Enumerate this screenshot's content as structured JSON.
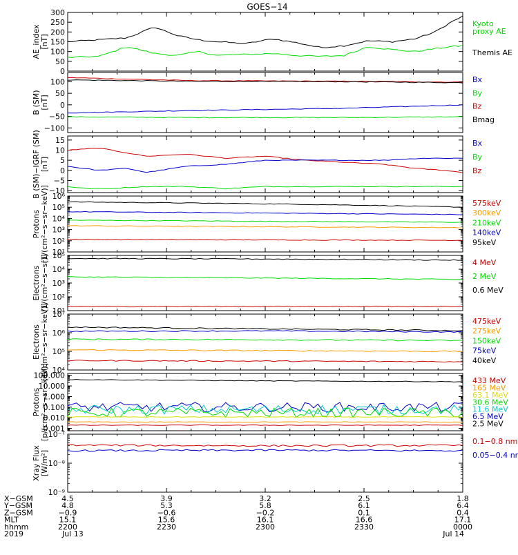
{
  "title": "GOES−14",
  "chart_data": [
    {
      "type": "line",
      "ylabel": [
        "AE_index",
        "[nT]"
      ],
      "yscale": "linear",
      "ylim": [
        0,
        300
      ],
      "yticks": [
        0,
        50,
        100,
        150,
        200,
        250,
        300
      ],
      "ytick_labels": [
        "0",
        "50",
        "100",
        "150",
        "200",
        "250",
        "300"
      ],
      "series": [
        {
          "name": "Themis AE",
          "color": "#000000",
          "kind": "ae",
          "x": [
            0,
            0.08,
            0.15,
            0.22,
            0.28,
            0.33,
            0.38,
            0.45,
            0.52,
            0.58,
            0.64,
            0.7,
            0.76,
            0.82,
            0.88,
            0.93,
            0.97,
            1.0
          ],
          "y": [
            150,
            160,
            170,
            225,
            180,
            160,
            150,
            140,
            165,
            145,
            120,
            130,
            155,
            150,
            165,
            200,
            250,
            280
          ]
        },
        {
          "name": "Kyoto proxy AE",
          "color": "#00dd00",
          "kind": "kyoto",
          "x": [
            0,
            0.08,
            0.15,
            0.22,
            0.28,
            0.33,
            0.38,
            0.45,
            0.52,
            0.58,
            0.64,
            0.7,
            0.76,
            0.82,
            0.88,
            0.93,
            0.97,
            1.0
          ],
          "y": [
            70,
            75,
            125,
            90,
            80,
            100,
            80,
            85,
            90,
            80,
            75,
            80,
            125,
            110,
            100,
            115,
            125,
            130
          ]
        }
      ],
      "legend_lines": [
        {
          "text": "Kyoto",
          "color": "#00dd00"
        },
        {
          "text": "proxy AE",
          "color": "#00dd00"
        },
        {
          "text": "Themis AE",
          "color": "#000000"
        }
      ]
    },
    {
      "type": "line",
      "ylabel": [
        "B (SM)",
        "[nT]"
      ],
      "yscale": "linear",
      "ylim": [
        -120,
        140
      ],
      "yticks": [
        -100,
        -50,
        0,
        50,
        100
      ],
      "ytick_labels": [
        "−100",
        "−50",
        "0",
        "50",
        "100"
      ],
      "series": [
        {
          "name": "Bz",
          "color": "#cc0000",
          "x": [
            0,
            0.3,
            0.7,
            1.0
          ],
          "y": [
            118,
            105,
            102,
            98
          ]
        },
        {
          "name": "Bmag",
          "color": "#000000",
          "x": [
            0,
            0.3,
            0.7,
            1.0
          ],
          "y": [
            108,
            102,
            100,
            96
          ]
        },
        {
          "name": "Bx",
          "color": "#0000cc",
          "x": [
            0,
            0.3,
            0.7,
            1.0
          ],
          "y": [
            -35,
            -25,
            -15,
            0
          ]
        },
        {
          "name": "By",
          "color": "#00dd00",
          "x": [
            0,
            0.3,
            0.7,
            1.0
          ],
          "y": [
            -52,
            -55,
            -55,
            -52
          ]
        }
      ],
      "legend_lines": [
        {
          "text": "Bx",
          "color": "#0000cc"
        },
        {
          "text": "By",
          "color": "#00dd00"
        },
        {
          "text": "Bz",
          "color": "#cc0000"
        },
        {
          "text": "Bmag",
          "color": "#000000"
        }
      ]
    },
    {
      "type": "line",
      "ylabel": [
        "B (SM)−IGRF (SM)",
        "[nT]"
      ],
      "yscale": "linear",
      "ylim": [
        -11,
        17
      ],
      "yticks": [
        -10,
        -5,
        0,
        5,
        10,
        15
      ],
      "ytick_labels": [
        "−10",
        "−5",
        "0",
        "5",
        "10",
        "15"
      ],
      "series": [
        {
          "name": "Bz",
          "color": "#cc0000",
          "x": [
            0,
            0.08,
            0.14,
            0.2,
            0.3,
            0.4,
            0.5,
            0.6,
            0.7,
            0.8,
            0.88,
            0.95,
            1.0
          ],
          "y": [
            10,
            11,
            9,
            7,
            8,
            6,
            7,
            5,
            4,
            3,
            1,
            0,
            -1
          ]
        },
        {
          "name": "Bx",
          "color": "#0000cc",
          "x": [
            0,
            0.08,
            0.15,
            0.2,
            0.3,
            0.4,
            0.5,
            0.6,
            0.7,
            0.8,
            0.9,
            1.0
          ],
          "y": [
            2,
            0,
            1,
            -1,
            2,
            3,
            5,
            5,
            5,
            5,
            6,
            6
          ]
        },
        {
          "name": "By",
          "color": "#00dd00",
          "x": [
            0,
            0.05,
            0.1,
            0.2,
            0.3,
            0.4,
            0.5,
            0.6,
            0.7,
            0.8,
            0.9,
            1.0
          ],
          "y": [
            -8,
            -9,
            -9,
            -8,
            -8,
            -9,
            -8,
            -8,
            -8,
            -8,
            -8,
            -8
          ]
        }
      ],
      "legend_lines": [
        {
          "text": "Bx",
          "color": "#0000cc"
        },
        {
          "text": "By",
          "color": "#00dd00"
        },
        {
          "text": "Bz",
          "color": "#cc0000"
        }
      ]
    },
    {
      "type": "line",
      "ylabel": [
        "Protons",
        "[1/(cm²−s−sr−keV)]"
      ],
      "yscale": "log",
      "ylim": [
        10,
        1000000
      ],
      "yticks": [
        10,
        100,
        1000,
        10000,
        100000,
        1000000
      ],
      "ytick_labels": [
        "10¹",
        "10²",
        "10³",
        "10⁴",
        "10⁵",
        "10⁶"
      ],
      "series": [
        {
          "name": "95keV",
          "color": "#000000",
          "x": [
            0,
            0.5,
            1.0
          ],
          "y": [
            300000,
            200000,
            100000
          ]
        },
        {
          "name": "140keV",
          "color": "#0000cc",
          "x": [
            0,
            0.5,
            1.0
          ],
          "y": [
            40000,
            30000,
            22000
          ]
        },
        {
          "name": "210keV",
          "color": "#00dd00",
          "x": [
            0,
            0.5,
            1.0
          ],
          "y": [
            7000,
            5500,
            4500
          ]
        },
        {
          "name": "300keV",
          "color": "#ff9900",
          "x": [
            0,
            0.5,
            1.0
          ],
          "y": [
            2200,
            1800,
            1500
          ]
        },
        {
          "name": "575keV",
          "color": "#cc0000",
          "x": [
            0,
            0.5,
            1.0
          ],
          "y": [
            130,
            120,
            110
          ]
        }
      ],
      "legend_lines": [
        {
          "text": "575keV",
          "color": "#cc0000"
        },
        {
          "text": "300keV",
          "color": "#ff9900"
        },
        {
          "text": "210keV",
          "color": "#00dd00"
        },
        {
          "text": "140keV",
          "color": "#0000cc"
        },
        {
          "text": "95keV",
          "color": "#000000"
        }
      ]
    },
    {
      "type": "line",
      "ylabel": [
        "Electrons",
        "[1/(cm²−s−sr)]"
      ],
      "yscale": "log",
      "ylim": [
        10,
        100000
      ],
      "yticks": [
        10,
        100,
        1000,
        10000,
        100000
      ],
      "ytick_labels": [
        "10¹",
        "10²",
        "10³",
        "10⁴",
        "10⁵"
      ],
      "series": [
        {
          "name": "0.6 MeV",
          "color": "#000000",
          "x": [
            0,
            0.5,
            1.0
          ],
          "y": [
            60000,
            55000,
            45000
          ]
        },
        {
          "name": "2 MeV",
          "color": "#00dd00",
          "x": [
            0,
            0.5,
            1.0
          ],
          "y": [
            2800,
            2300,
            1800
          ]
        },
        {
          "name": "4 MeV",
          "color": "#cc0000",
          "x": [
            0,
            0.5,
            1.0
          ],
          "y": [
            20,
            20,
            20
          ]
        }
      ],
      "legend_lines": [
        {
          "text": "4 MeV",
          "color": "#cc0000"
        },
        {
          "text": "2 MeV",
          "color": "#00dd00"
        },
        {
          "text": "0.6 MeV",
          "color": "#000000"
        }
      ]
    },
    {
      "type": "line",
      "ylabel": [
        "Electrons",
        "[1/(cm²−s−sr−keV)]"
      ],
      "yscale": "log",
      "ylim": [
        10000,
        10000000
      ],
      "yticks": [
        10000,
        100000,
        1000000,
        10000000
      ],
      "ytick_labels": [
        "10⁴",
        "10⁵",
        "10⁶",
        "10⁷"
      ],
      "series": [
        {
          "name": "40keV",
          "color": "#000000",
          "x": [
            0,
            0.5,
            1.0
          ],
          "y": [
            2000000,
            1600000,
            1300000
          ]
        },
        {
          "name": "75keV",
          "color": "#0000cc",
          "x": [
            0,
            0.5,
            1.0
          ],
          "y": [
            1200000,
            1250000,
            1100000
          ]
        },
        {
          "name": "150keV",
          "color": "#00dd00",
          "x": [
            0,
            0.5,
            1.0
          ],
          "y": [
            450000,
            420000,
            380000
          ]
        },
        {
          "name": "275keV",
          "color": "#ff9900",
          "x": [
            0,
            0.5,
            1.0
          ],
          "y": [
            120000,
            110000,
            100000
          ]
        },
        {
          "name": "475keV",
          "color": "#cc0000",
          "x": [
            0,
            0.5,
            1.0
          ],
          "y": [
            32000,
            30000,
            28000
          ]
        }
      ],
      "legend_lines": [
        {
          "text": "475keV",
          "color": "#cc0000"
        },
        {
          "text": "275keV",
          "color": "#ff9900"
        },
        {
          "text": "150keV",
          "color": "#00dd00"
        },
        {
          "text": "75keV",
          "color": "#0000cc"
        },
        {
          "text": "40keV",
          "color": "#000000"
        }
      ]
    },
    {
      "type": "line",
      "ylabel": [
        "Protons",
        "[p/(cm²−s−sr−keV)]"
      ],
      "yscale": "log",
      "ylim": [
        0.0006,
        150
      ],
      "yticks": [
        0.001,
        0.01,
        0.1,
        1,
        10,
        100
      ],
      "ytick_labels": [
        "0.001",
        "0.010",
        "0.100",
        "1.000",
        "10.000",
        "100.000"
      ],
      "series": [
        {
          "name": "2.5 MeV",
          "color": "#000000",
          "x": [
            0,
            0.5,
            1.0
          ],
          "y": [
            40,
            30,
            25
          ]
        },
        {
          "name": "6.5 MeV",
          "color": "#0000cc",
          "x": [
            0,
            0.5,
            1.0
          ],
          "y": [
            0.1,
            0.1,
            0.1
          ],
          "noisy": true
        },
        {
          "name": "11.6 MeV",
          "color": "#00cccc",
          "x": [
            0,
            0.5,
            1.0
          ],
          "y": [
            0.06,
            0.06,
            0.06
          ],
          "noisy": true
        },
        {
          "name": "30.6 MeV",
          "color": "#00dd00",
          "x": [
            0,
            0.5,
            1.0
          ],
          "y": [
            0.03,
            0.03,
            0.03
          ],
          "noisy": true
        },
        {
          "name": "63.1 MeV",
          "color": "#dddd00",
          "x": [
            0,
            0.5,
            1.0
          ],
          "y": [
            0.012,
            0.012,
            0.012
          ]
        },
        {
          "name": "165 MeV",
          "color": "#ff9900",
          "x": [
            0,
            0.5,
            1.0
          ],
          "y": [
            0.004,
            0.004,
            0.004
          ]
        },
        {
          "name": "433 MeV",
          "color": "#cc0000",
          "x": [
            0,
            0.5,
            1.0
          ],
          "y": [
            0.002,
            0.002,
            0.002
          ]
        }
      ],
      "legend_lines": [
        {
          "text": "433 MeV",
          "color": "#cc0000"
        },
        {
          "text": "165 MeV",
          "color": "#ff9900"
        },
        {
          "text": "63.1 MeV",
          "color": "#dddd00"
        },
        {
          "text": "30.6 MeV",
          "color": "#00dd00"
        },
        {
          "text": "11.6 MeV",
          "color": "#00cccc"
        },
        {
          "text": "6.5 MeV",
          "color": "#0000cc"
        },
        {
          "text": "2.5 MeV",
          "color": "#000000"
        }
      ]
    },
    {
      "type": "line",
      "ylabel": [
        "Xray Flux",
        "[W/m²]"
      ],
      "yscale": "log",
      "ylim": [
        1e-09,
        1e-07
      ],
      "yticks": [
        1e-09,
        1e-08,
        1e-07
      ],
      "ytick_labels": [
        "10⁻⁹",
        "10⁻⁸",
        "10⁻⁷"
      ],
      "series": [
        {
          "name": "0.1−0.8 nm",
          "color": "#cc0000",
          "x": [
            0,
            0.5,
            1.0
          ],
          "y": [
            4.2e-08,
            4e-08,
            4.1e-08
          ]
        },
        {
          "name": "0.05−0.4 nm",
          "color": "#0000cc",
          "x": [
            0,
            0.5,
            1.0
          ],
          "y": [
            2.7e-08,
            2.8e-08,
            2.7e-08
          ]
        }
      ],
      "legend_lines": [
        {
          "text": "0.1−0.8 nm",
          "color": "#cc0000"
        },
        {
          "text": "0.05−0.4 nm",
          "color": "#0000cc"
        }
      ]
    }
  ],
  "footer": {
    "row_labels": [
      "X−GSM",
      "Y−GSM",
      "Z−GSM",
      "MLT",
      "hhmm",
      "2019"
    ],
    "columns": [
      [
        "4.5",
        "4.8",
        "−0.9",
        "15.1",
        "2200",
        "Jul 13"
      ],
      [
        "3.9",
        "5.3",
        "−0.6",
        "15.6",
        "2230",
        ""
      ],
      [
        "3.2",
        "5.8",
        "−0.2",
        "16.1",
        "2300",
        ""
      ],
      [
        "2.5",
        "6.1",
        "0.1",
        "16.6",
        "2330",
        ""
      ],
      [
        "1.8",
        "6.4",
        "0.4",
        "17.1",
        "0000",
        "Jul 14"
      ]
    ]
  }
}
